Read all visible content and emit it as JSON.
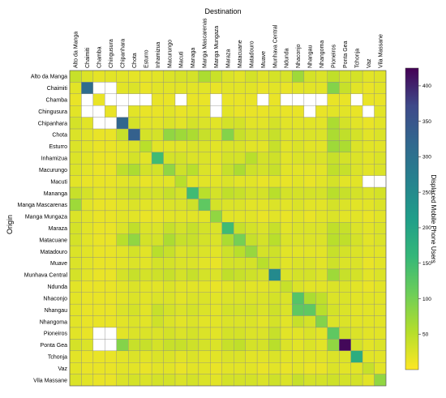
{
  "chart_data": {
    "type": "heatmap",
    "title": "",
    "xlabel": "Destination",
    "ylabel": "Origin",
    "x_categories": [
      "Alto da Manga",
      "Chaimiti",
      "Chamba",
      "Chingusura",
      "Chipanhara",
      "Chota",
      "Esturro",
      "Inhamizua",
      "Macurungo",
      "Macuti",
      "Managa",
      "Manga Mascarenas",
      "Manga Mungaza",
      "Maraza",
      "Matacuane",
      "Matadouro",
      "Muave",
      "Munhava Central",
      "Ndunda",
      "Nhaconjo",
      "Nhangau",
      "Nhangoma",
      "Pioneiros",
      "Ponta Gea",
      "Tchonja",
      "Vaz",
      "Vila  Massane"
    ],
    "y_categories": [
      "Alto da Manga",
      "Chaimiti",
      "Chamba",
      "Chingusura",
      "Chipanhara",
      "Chota",
      "Esturro",
      "Inhamizua",
      "Macurungo",
      "Macuti",
      "Mananga",
      "Manga Mascarenas",
      "Manga Mungaza",
      "Maraza",
      "Matacuane",
      "Matadouro",
      "Muave",
      "Munhava Central",
      "Ndunda",
      "Nhaconjo",
      "Nhangau",
      "Nhangoma",
      "Pioneiros",
      "Ponta Gea",
      "Tchonja",
      "Vaz",
      "Vila  Massane"
    ],
    "colorbar": {
      "label": "Displaced Mobile Phone Users",
      "min": 0,
      "max": 425,
      "ticks": [
        50,
        100,
        150,
        200,
        250,
        300,
        350,
        400
      ],
      "colormap": "viridis_r"
    },
    "missing_note": "null = no data (white)",
    "values": [
      [
        40,
        25,
        18,
        20,
        20,
        18,
        18,
        20,
        25,
        28,
        30,
        60,
        38,
        25,
        20,
        30,
        22,
        30,
        28,
        70,
        30,
        25,
        45,
        30,
        30,
        20,
        22
      ],
      [
        20,
        310,
        null,
        null,
        20,
        25,
        15,
        20,
        20,
        20,
        20,
        20,
        15,
        20,
        20,
        20,
        15,
        20,
        15,
        20,
        20,
        20,
        90,
        40,
        20,
        15,
        20
      ],
      [
        15,
        null,
        15,
        null,
        null,
        null,
        null,
        15,
        15,
        null,
        15,
        15,
        null,
        15,
        15,
        15,
        null,
        15,
        null,
        null,
        null,
        null,
        15,
        15,
        null,
        15,
        15
      ],
      [
        20,
        null,
        null,
        15,
        null,
        20,
        15,
        15,
        20,
        15,
        20,
        20,
        null,
        20,
        15,
        15,
        15,
        20,
        15,
        15,
        null,
        15,
        20,
        20,
        15,
        null,
        20
      ],
      [
        30,
        20,
        null,
        null,
        320,
        30,
        20,
        20,
        25,
        20,
        30,
        25,
        20,
        30,
        30,
        20,
        20,
        30,
        20,
        20,
        20,
        20,
        60,
        30,
        20,
        15,
        20
      ],
      [
        25,
        20,
        15,
        15,
        40,
        330,
        30,
        30,
        80,
        70,
        60,
        40,
        30,
        90,
        40,
        30,
        30,
        40,
        25,
        25,
        25,
        25,
        60,
        45,
        30,
        20,
        25
      ],
      [
        25,
        20,
        15,
        15,
        20,
        25,
        50,
        20,
        20,
        20,
        25,
        25,
        20,
        25,
        25,
        20,
        20,
        40,
        20,
        25,
        20,
        20,
        70,
        60,
        25,
        20,
        20
      ],
      [
        25,
        20,
        15,
        15,
        20,
        30,
        20,
        150,
        30,
        30,
        25,
        25,
        20,
        30,
        30,
        50,
        30,
        35,
        20,
        25,
        25,
        25,
        40,
        30,
        25,
        20,
        25
      ],
      [
        25,
        20,
        15,
        15,
        45,
        60,
        30,
        30,
        80,
        35,
        50,
        25,
        20,
        40,
        60,
        35,
        30,
        40,
        20,
        20,
        20,
        20,
        45,
        40,
        25,
        20,
        25
      ],
      [
        20,
        15,
        15,
        15,
        20,
        25,
        15,
        20,
        20,
        50,
        20,
        20,
        20,
        25,
        20,
        20,
        15,
        20,
        15,
        20,
        15,
        20,
        30,
        20,
        20,
        null,
        null
      ],
      [
        40,
        30,
        20,
        20,
        30,
        40,
        30,
        30,
        40,
        30,
        150,
        50,
        30,
        45,
        40,
        30,
        30,
        50,
        30,
        30,
        30,
        30,
        50,
        40,
        30,
        25,
        30
      ],
      [
        70,
        20,
        15,
        15,
        20,
        25,
        20,
        20,
        25,
        25,
        35,
        120,
        30,
        25,
        25,
        20,
        20,
        25,
        20,
        25,
        20,
        20,
        30,
        25,
        20,
        20,
        25
      ],
      [
        25,
        20,
        15,
        15,
        20,
        20,
        15,
        15,
        20,
        20,
        20,
        20,
        80,
        20,
        20,
        20,
        15,
        20,
        15,
        20,
        15,
        20,
        25,
        20,
        20,
        15,
        20
      ],
      [
        30,
        20,
        15,
        15,
        25,
        45,
        25,
        25,
        40,
        30,
        40,
        30,
        25,
        150,
        40,
        30,
        25,
        40,
        20,
        25,
        25,
        25,
        45,
        40,
        25,
        20,
        25
      ],
      [
        30,
        20,
        15,
        15,
        50,
        80,
        30,
        30,
        60,
        40,
        40,
        30,
        25,
        60,
        100,
        40,
        30,
        50,
        25,
        25,
        25,
        25,
        50,
        45,
        30,
        20,
        25
      ],
      [
        25,
        20,
        15,
        15,
        20,
        30,
        20,
        50,
        40,
        25,
        30,
        25,
        20,
        35,
        50,
        75,
        30,
        35,
        20,
        20,
        20,
        20,
        40,
        30,
        25,
        20,
        20
      ],
      [
        25,
        20,
        15,
        15,
        20,
        25,
        20,
        30,
        30,
        25,
        25,
        20,
        15,
        30,
        30,
        30,
        50,
        35,
        20,
        25,
        25,
        20,
        35,
        25,
        25,
        15,
        20
      ],
      [
        30,
        20,
        15,
        15,
        30,
        40,
        30,
        35,
        40,
        30,
        40,
        30,
        25,
        45,
        40,
        35,
        30,
        250,
        25,
        30,
        30,
        25,
        70,
        40,
        30,
        20,
        25
      ],
      [
        20,
        15,
        15,
        15,
        20,
        25,
        20,
        20,
        25,
        20,
        20,
        20,
        15,
        20,
        25,
        20,
        20,
        25,
        40,
        25,
        20,
        20,
        25,
        25,
        20,
        15,
        20
      ],
      [
        20,
        15,
        15,
        15,
        20,
        25,
        20,
        25,
        25,
        20,
        25,
        25,
        20,
        25,
        25,
        25,
        25,
        30,
        25,
        130,
        60,
        45,
        25,
        25,
        20,
        20,
        20
      ],
      [
        20,
        15,
        15,
        15,
        25,
        30,
        20,
        40,
        30,
        25,
        30,
        25,
        20,
        30,
        30,
        30,
        25,
        35,
        25,
        120,
        120,
        50,
        30,
        25,
        20,
        20,
        20
      ],
      [
        20,
        15,
        15,
        15,
        20,
        25,
        20,
        35,
        25,
        20,
        25,
        20,
        20,
        25,
        25,
        25,
        20,
        30,
        20,
        40,
        30,
        90,
        25,
        25,
        20,
        20,
        20
      ],
      [
        20,
        15,
        null,
        null,
        20,
        25,
        25,
        25,
        30,
        25,
        30,
        25,
        20,
        30,
        30,
        25,
        25,
        40,
        20,
        20,
        25,
        20,
        120,
        35,
        25,
        20,
        20
      ],
      [
        30,
        25,
        null,
        null,
        90,
        40,
        40,
        30,
        40,
        40,
        35,
        30,
        25,
        40,
        45,
        30,
        30,
        50,
        25,
        20,
        25,
        20,
        80,
        420,
        30,
        20,
        25
      ],
      [
        20,
        15,
        15,
        15,
        20,
        25,
        20,
        25,
        25,
        20,
        25,
        20,
        20,
        25,
        25,
        20,
        20,
        25,
        20,
        20,
        20,
        20,
        25,
        25,
        180,
        20,
        20
      ],
      [
        20,
        15,
        15,
        15,
        20,
        20,
        15,
        20,
        20,
        15,
        20,
        20,
        15,
        20,
        20,
        20,
        15,
        20,
        15,
        20,
        15,
        15,
        25,
        20,
        20,
        40,
        20
      ],
      [
        25,
        20,
        15,
        15,
        25,
        30,
        25,
        30,
        30,
        25,
        30,
        25,
        20,
        30,
        30,
        30,
        25,
        35,
        25,
        40,
        30,
        30,
        35,
        30,
        30,
        20,
        80
      ]
    ]
  }
}
